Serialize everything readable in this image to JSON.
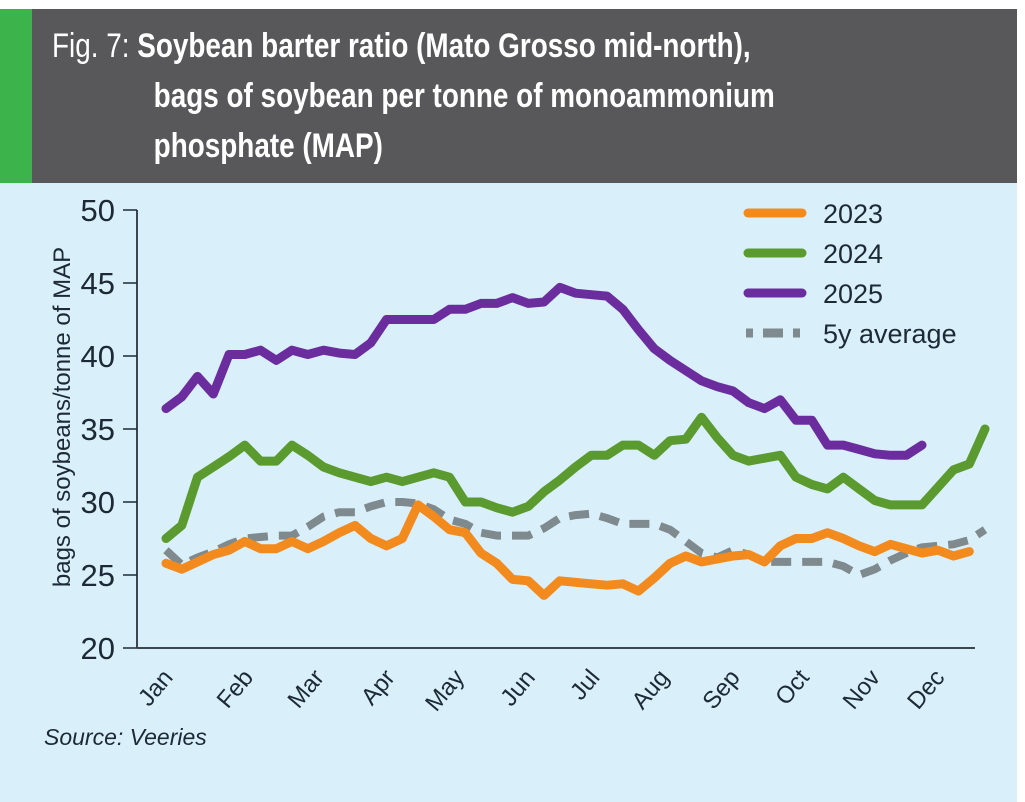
{
  "figure": {
    "fig_label": "Fig. 7:",
    "title_lines": [
      "Soybean barter ratio (Mato Grosso mid-north),",
      "bags of soybean per tonne of monoammonium",
      "phosphate (MAP)"
    ],
    "source": "Source: Veeries"
  },
  "colors": {
    "header_bg": "#58585a",
    "accent": "#3cb44b",
    "panel_bg": "#d9f0fa",
    "series_2023": "#f28a1e",
    "series_2024": "#5a9a2e",
    "series_2025": "#6b2d9e",
    "series_avg": "#7f8a8e"
  },
  "chart_data": {
    "type": "line",
    "title": "Soybean barter ratio (Mato Grosso mid-north), bags of soybean per tonne of monoammonium phosphate (MAP)",
    "xlabel": "",
    "ylabel": "bags of soybeans/tonne of MAP",
    "ylim": [
      20,
      50
    ],
    "yticks": [
      20,
      25,
      30,
      35,
      40,
      45,
      50
    ],
    "x_unit": "week of year",
    "xlim": [
      1,
      53
    ],
    "xtick_labels": [
      "Jan",
      "Feb",
      "Mar",
      "Apr",
      "May",
      "Jun",
      "Jul",
      "Aug",
      "Sep",
      "Oct",
      "Nov",
      "Dec"
    ],
    "xtick_weeks": [
      0.0,
      5.1,
      9.6,
      14.1,
      18.5,
      23.0,
      27.1,
      31.5,
      36.0,
      40.4,
      44.9,
      49.0
    ],
    "grid": false,
    "legend_position": "top-right",
    "series": [
      {
        "name": "2023",
        "style": "solid",
        "x": [
          1,
          2,
          3,
          4,
          5,
          6,
          7,
          8,
          9,
          10,
          11,
          12,
          13,
          14,
          15,
          16,
          17,
          18,
          19,
          20,
          21,
          22,
          23,
          24,
          25,
          26,
          27,
          28,
          29,
          30,
          31,
          32,
          33,
          34,
          35,
          36,
          37,
          38,
          39,
          40,
          41,
          42,
          43,
          44,
          45,
          46,
          47,
          48,
          49,
          50,
          51,
          52
        ],
        "values": [
          25.8,
          25.4,
          25.9,
          26.4,
          26.7,
          27.3,
          26.8,
          26.8,
          27.3,
          26.8,
          27.3,
          27.9,
          28.4,
          27.5,
          27.0,
          27.5,
          29.8,
          29.0,
          28.1,
          27.9,
          26.5,
          25.8,
          24.7,
          24.6,
          23.6,
          24.6,
          24.5,
          24.4,
          24.3,
          24.4,
          23.9,
          24.8,
          25.8,
          26.3,
          25.9,
          26.1,
          26.3,
          26.4,
          25.9,
          27.0,
          27.5,
          27.5,
          27.9,
          27.5,
          27.0,
          26.6,
          27.1,
          26.8,
          26.5,
          26.7,
          26.3,
          26.6
        ]
      },
      {
        "name": "2024",
        "style": "solid",
        "x": [
          1,
          2,
          3,
          4,
          5,
          6,
          7,
          8,
          9,
          10,
          11,
          12,
          13,
          14,
          15,
          16,
          17,
          18,
          19,
          20,
          21,
          22,
          23,
          24,
          25,
          26,
          27,
          28,
          29,
          30,
          31,
          32,
          33,
          34,
          35,
          36,
          37,
          38,
          39,
          40,
          41,
          42,
          43,
          44,
          45,
          46,
          47,
          48,
          49,
          50,
          51,
          52,
          53
        ],
        "values": [
          27.5,
          28.4,
          31.7,
          32.4,
          33.1,
          33.9,
          32.8,
          32.8,
          33.9,
          33.2,
          32.4,
          32.0,
          31.7,
          31.4,
          31.7,
          31.4,
          31.7,
          32.0,
          31.7,
          30.0,
          30.0,
          29.6,
          29.3,
          29.7,
          30.7,
          31.5,
          32.4,
          33.2,
          33.2,
          33.9,
          33.9,
          33.2,
          34.2,
          34.3,
          35.8,
          34.4,
          33.2,
          32.8,
          33.0,
          33.2,
          31.7,
          31.2,
          30.9,
          31.7,
          30.9,
          30.1,
          29.8,
          29.8,
          29.8,
          31.0,
          32.2,
          32.6,
          35.0
        ]
      },
      {
        "name": "2025",
        "style": "solid",
        "x": [
          1,
          2,
          3,
          4,
          5,
          6,
          7,
          8,
          9,
          10,
          11,
          12,
          13,
          14,
          15,
          16,
          17,
          18,
          19,
          20,
          21,
          22,
          23,
          24,
          25,
          26,
          27,
          28,
          29,
          30,
          31,
          32,
          33,
          34,
          35,
          36,
          37,
          38,
          39,
          40,
          41,
          42,
          43,
          44,
          45,
          46,
          47,
          48,
          49
        ],
        "values": [
          36.4,
          37.2,
          38.6,
          37.4,
          40.1,
          40.1,
          40.4,
          39.7,
          40.4,
          40.1,
          40.4,
          40.2,
          40.1,
          40.9,
          42.5,
          42.5,
          42.5,
          42.5,
          43.2,
          43.2,
          43.6,
          43.6,
          44.0,
          43.6,
          43.7,
          44.7,
          44.3,
          44.2,
          44.1,
          43.2,
          41.8,
          40.5,
          39.7,
          39.0,
          38.3,
          37.9,
          37.6,
          36.8,
          36.4,
          37.0,
          35.6,
          35.6,
          33.9,
          33.9,
          33.6,
          33.3,
          33.2,
          33.2,
          33.9
        ]
      },
      {
        "name": "5y average",
        "style": "dashed",
        "x": [
          1,
          2,
          3,
          4,
          5,
          6,
          7,
          8,
          9,
          10,
          11,
          12,
          13,
          14,
          15,
          16,
          17,
          18,
          19,
          20,
          21,
          22,
          23,
          24,
          25,
          26,
          27,
          28,
          29,
          30,
          31,
          32,
          33,
          34,
          35,
          36,
          37,
          38,
          39,
          40,
          41,
          42,
          43,
          44,
          45,
          46,
          47,
          48,
          49,
          50,
          51,
          52,
          53
        ],
        "values": [
          26.7,
          25.7,
          26.2,
          26.6,
          27.1,
          27.5,
          27.6,
          27.7,
          27.7,
          28.3,
          29.0,
          29.3,
          29.3,
          29.7,
          30.0,
          30.0,
          29.9,
          29.5,
          28.8,
          28.5,
          27.9,
          27.7,
          27.7,
          27.7,
          28.2,
          28.9,
          29.1,
          29.2,
          28.9,
          28.5,
          28.5,
          28.5,
          28.1,
          27.3,
          26.5,
          26.2,
          26.7,
          26.4,
          25.9,
          25.9,
          25.9,
          25.9,
          25.9,
          25.6,
          25.0,
          25.4,
          26.0,
          26.5,
          26.9,
          27.0,
          27.1,
          27.4,
          28.1
        ]
      }
    ]
  }
}
